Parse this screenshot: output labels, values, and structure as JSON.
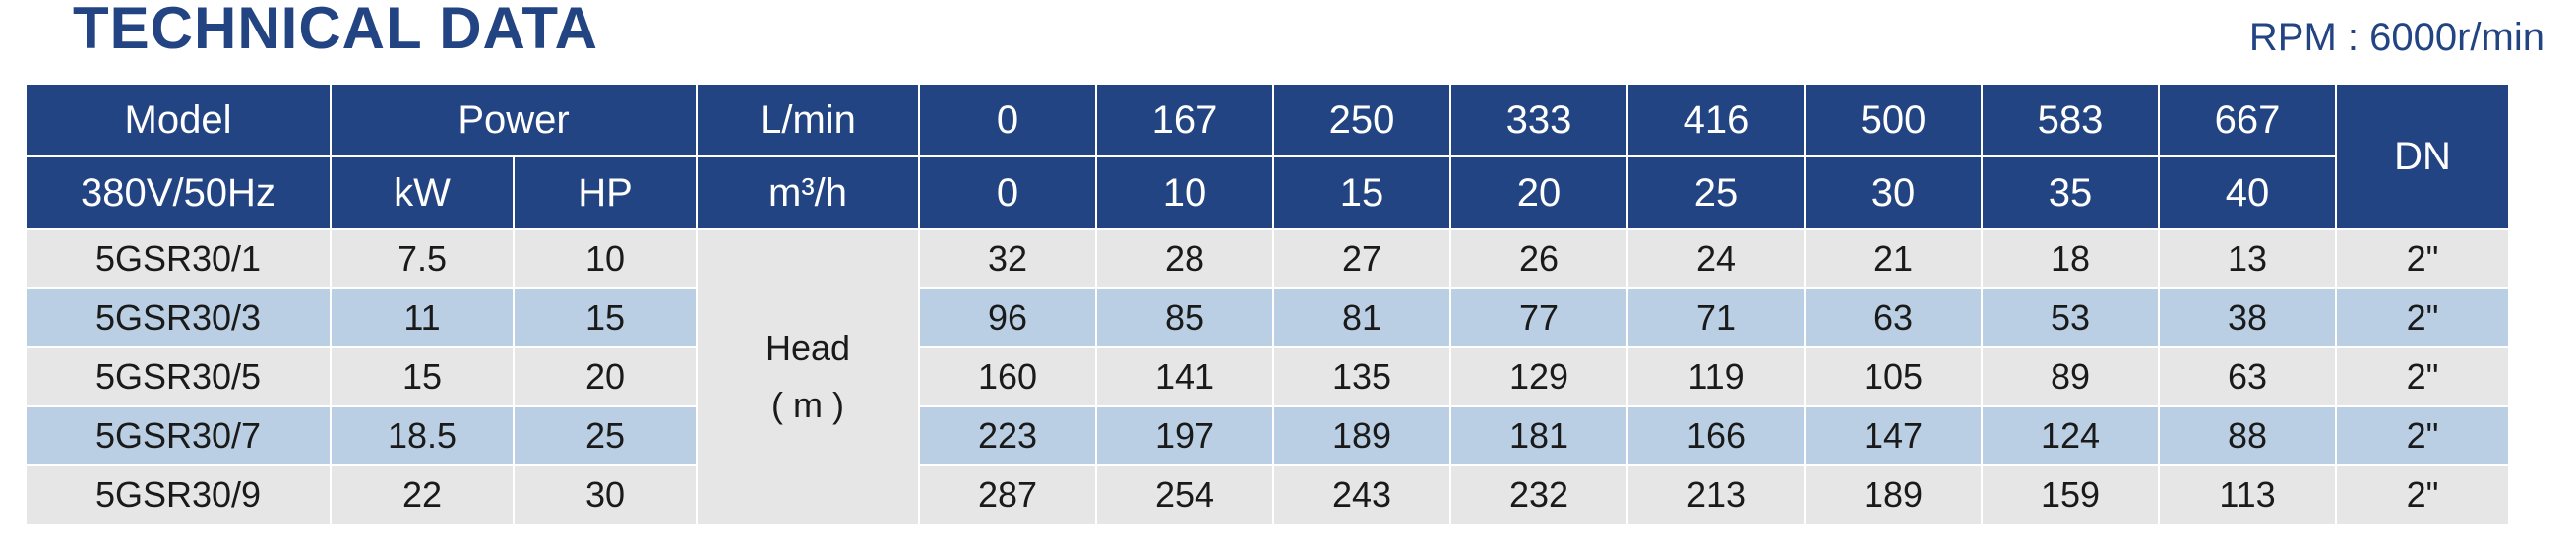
{
  "title": "TECHNICAL DATA",
  "rpm": "RPM : 6000r/min",
  "header": {
    "model": "Model",
    "power": "Power",
    "flow_lmin_label": "L/min",
    "flow_lmin": [
      "0",
      "167",
      "250",
      "333",
      "416",
      "500",
      "583",
      "667"
    ],
    "dn": "DN",
    "voltage": "380V/50Hz",
    "kw": "kW",
    "hp": "HP",
    "flow_m3h_label": "m³/h",
    "flow_m3h": [
      "0",
      "10",
      "15",
      "20",
      "25",
      "30",
      "35",
      "40"
    ]
  },
  "head_label": {
    "line1": "Head",
    "line2": "( m )"
  },
  "rows": [
    {
      "model": "5GSR30/1",
      "kw": "7.5",
      "hp": "10",
      "heads": [
        "32",
        "28",
        "27",
        "26",
        "24",
        "21",
        "18",
        "13"
      ],
      "dn": "2\""
    },
    {
      "model": "5GSR30/3",
      "kw": "11",
      "hp": "15",
      "heads": [
        "96",
        "85",
        "81",
        "77",
        "71",
        "63",
        "53",
        "38"
      ],
      "dn": "2\""
    },
    {
      "model": "5GSR30/5",
      "kw": "15",
      "hp": "20",
      "heads": [
        "160",
        "141",
        "135",
        "129",
        "119",
        "105",
        "89",
        "63"
      ],
      "dn": "2\""
    },
    {
      "model": "5GSR30/7",
      "kw": "18.5",
      "hp": "25",
      "heads": [
        "223",
        "197",
        "189",
        "181",
        "166",
        "147",
        "124",
        "88"
      ],
      "dn": "2\""
    },
    {
      "model": "5GSR30/9",
      "kw": "22",
      "hp": "30",
      "heads": [
        "287",
        "254",
        "243",
        "232",
        "213",
        "189",
        "159",
        "113"
      ],
      "dn": "2\""
    }
  ],
  "colors": {
    "header_bg": "#234483",
    "title": "#234483",
    "row_grey": "#e6e6e6",
    "row_blue": "#bacfe4"
  }
}
